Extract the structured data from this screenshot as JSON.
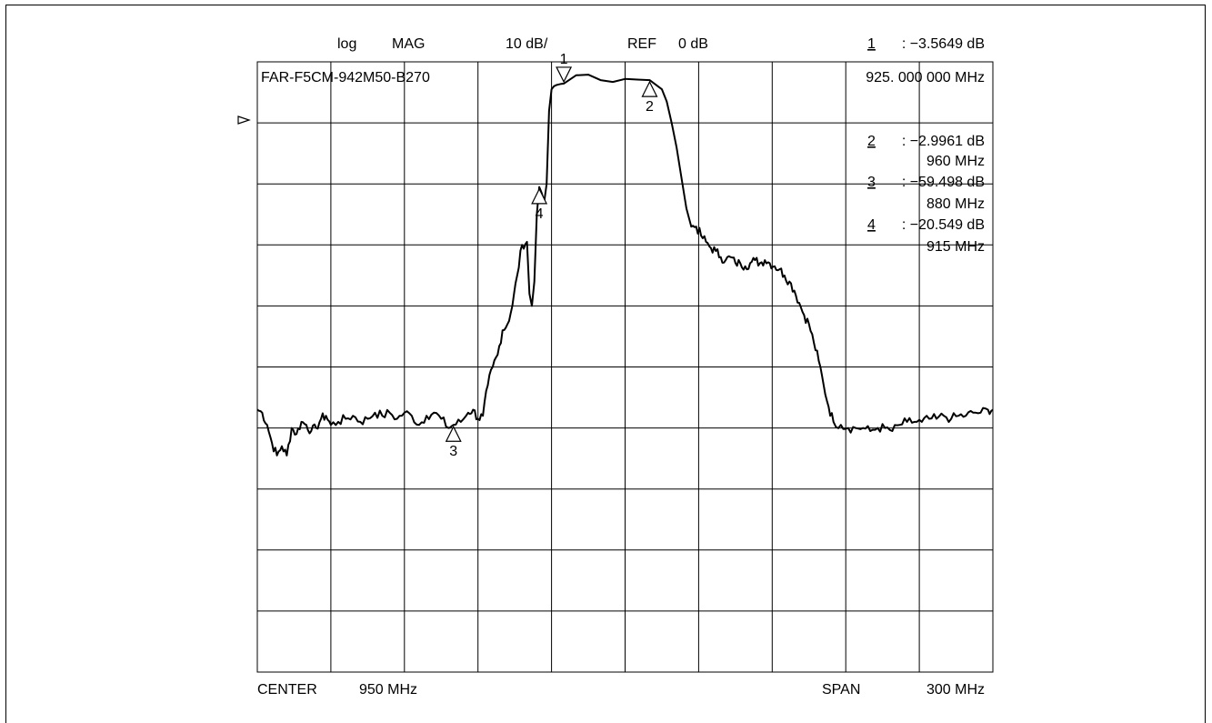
{
  "header": {
    "format": "log",
    "measurement": "MAG",
    "scale": "10 dB/",
    "ref_label": "REF",
    "ref_value": "0 dB",
    "marker_active_num": "1",
    "marker_active_value": ": −3.5649 dB"
  },
  "device_label": "FAR-F5CM-942M50-B270",
  "marker_freq_readout": "925. 000  000 MHz",
  "marker_readouts": [
    {
      "num": "2",
      "value": ": −2.9961 dB",
      "freq": "960 MHz"
    },
    {
      "num": "3",
      "value": ": −59.498 dB",
      "freq": "880 MHz"
    },
    {
      "num": "4",
      "value": ": −20.549 dB",
      "freq": "915 MHz"
    }
  ],
  "footer": {
    "center_label": "CENTER",
    "center_value": "950 MHz",
    "span_label": "SPAN",
    "span_value": "300 MHz"
  },
  "colors": {
    "trace": "#000000",
    "grid": "#000000",
    "background": "#ffffff"
  },
  "chart_data": {
    "type": "line",
    "title": "",
    "xlim": [
      800,
      1100
    ],
    "ylim": [
      -100,
      0
    ],
    "x_unit": "MHz",
    "y_unit": "dB",
    "grid": true,
    "reference_level_db": 0,
    "markers": [
      {
        "label": "1",
        "x": 925,
        "y": -3.5649,
        "symbol": "down-triangle"
      },
      {
        "label": "2",
        "x": 960,
        "y": -2.9961,
        "symbol": "up-triangle"
      },
      {
        "label": "3",
        "x": 880,
        "y": -59.498,
        "symbol": "up-triangle"
      },
      {
        "label": "4",
        "x": 915,
        "y": -20.549,
        "symbol": "up-triangle"
      }
    ],
    "series": [
      {
        "x": [
          800,
          802,
          804,
          806,
          808,
          810,
          812,
          814,
          816,
          818,
          820,
          822,
          824,
          826,
          828,
          830,
          833,
          836,
          839,
          842,
          845,
          848,
          851,
          854,
          857,
          860,
          863,
          866,
          869,
          872,
          875,
          878,
          880,
          883,
          886,
          888,
          890,
          892,
          894,
          896,
          898,
          900,
          902,
          904,
          906,
          908,
          910,
          911,
          912,
          913,
          914,
          915,
          916,
          917,
          918,
          919,
          920,
          921,
          922,
          923,
          924,
          925,
          930,
          935,
          940,
          945,
          950,
          955,
          960,
          965,
          967,
          969,
          971,
          973,
          975,
          977,
          979,
          981,
          983,
          985,
          987,
          989,
          991,
          993,
          995,
          997,
          999,
          1001,
          1003,
          1005,
          1007,
          1009,
          1011,
          1013,
          1015,
          1017,
          1019,
          1021,
          1023,
          1025,
          1027,
          1029,
          1031,
          1033,
          1035,
          1038,
          1041,
          1044,
          1047,
          1050,
          1053,
          1056,
          1059,
          1062,
          1065,
          1068,
          1071,
          1074,
          1077,
          1080,
          1083,
          1086,
          1089,
          1092,
          1095,
          1098,
          1100
        ],
        "y": [
          -57.0,
          -57.5,
          -59.5,
          -62.5,
          -64.5,
          -63.0,
          -64.5,
          -60.0,
          -61.0,
          -59.0,
          -59.5,
          -60.5,
          -60.0,
          -58.5,
          -58.0,
          -59.5,
          -59.0,
          -58.5,
          -58.0,
          -59.0,
          -58.5,
          -57.5,
          -58.0,
          -57.5,
          -58.5,
          -57.5,
          -58.0,
          -59.5,
          -58.0,
          -57.5,
          -58.5,
          -60.0,
          -59.5,
          -59.0,
          -57.5,
          -57.0,
          -58.5,
          -58.0,
          -53.0,
          -50.0,
          -48.0,
          -44.0,
          -43.0,
          -40.0,
          -35.0,
          -30.0,
          -29.5,
          -38.0,
          -40.0,
          -36.0,
          -25.0,
          -20.5,
          -21.5,
          -23.0,
          -20.0,
          -8.0,
          -4.5,
          -4.0,
          -3.8,
          -3.7,
          -3.6,
          -3.5649,
          -2.2,
          -2.1,
          -3.0,
          -3.3,
          -2.8,
          -2.9,
          -3.0,
          -4.5,
          -6.5,
          -10.0,
          -14.0,
          -19.0,
          -24.0,
          -27.0,
          -27.0,
          -28.5,
          -29.5,
          -30.5,
          -31.0,
          -32.0,
          -32.5,
          -32.0,
          -33.0,
          -33.0,
          -33.5,
          -33.0,
          -32.5,
          -33.0,
          -32.5,
          -33.0,
          -33.5,
          -34.0,
          -35.0,
          -36.0,
          -37.5,
          -39.5,
          -41.5,
          -43.0,
          -46.0,
          -49.0,
          -53.0,
          -56.5,
          -59.0,
          -59.5,
          -60.0,
          -60.0,
          -60.0,
          -60.5,
          -60.0,
          -60.0,
          -60.5,
          -59.5,
          -59.0,
          -59.0,
          -59.0,
          -58.5,
          -58.5,
          -58.0,
          -58.5,
          -58.0,
          -58.0,
          -57.5,
          -57.5,
          -57.0,
          -57.0
        ]
      }
    ]
  }
}
